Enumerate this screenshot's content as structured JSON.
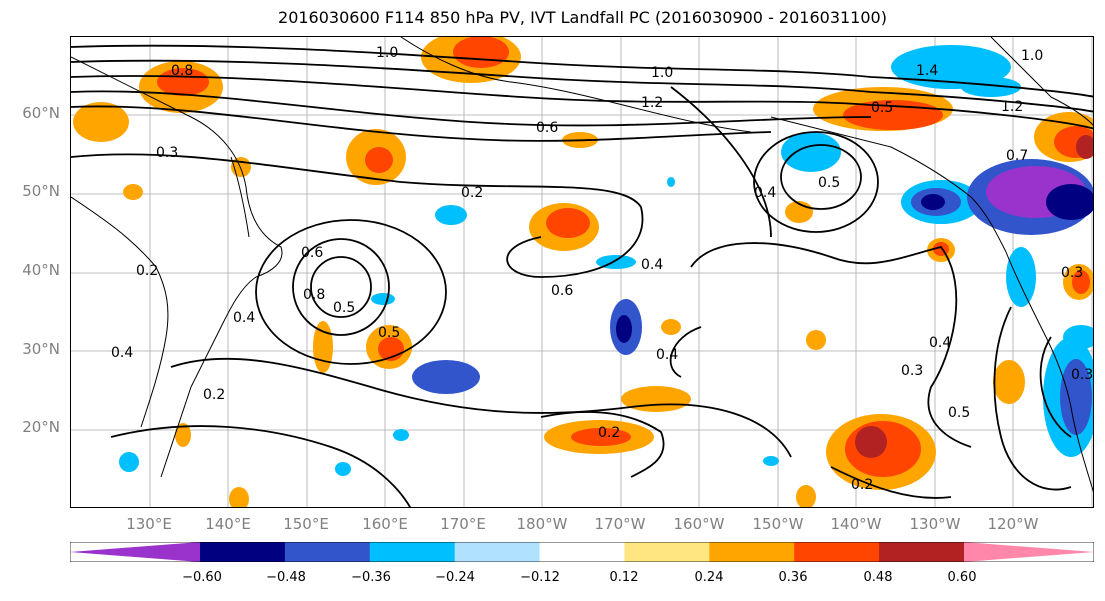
{
  "title": "2016030600 F114 850 hPa PV, IVT Landfall PC (2016030900 - 2016031100)",
  "lat_labels": [
    "60°N",
    "50°N",
    "40°N",
    "30°N",
    "20°N"
  ],
  "lon_labels": [
    "130°E",
    "140°E",
    "150°E",
    "160°E",
    "170°E",
    "180°W",
    "170°W",
    "160°W",
    "150°W",
    "140°W",
    "130°W",
    "120°W"
  ],
  "contour_labels": [
    "1.0",
    "0.8",
    "0.3",
    "0.6",
    "1.2",
    "1.0",
    "0.5",
    "1.4",
    "1.2",
    "1.0",
    "0.7",
    "0.3",
    "0.4",
    "0.5",
    "0.2",
    "0.6",
    "0.4",
    "0.8",
    "0.5",
    "0.5",
    "0.6",
    "0.4",
    "0.4",
    "0.2",
    "0.2",
    "0.3",
    "0.4",
    "0.5",
    "0.2",
    "0.3",
    "0.4",
    "0.2"
  ],
  "colorbar": {
    "colors": [
      "#9933cc",
      "#000080",
      "#3355cc",
      "#00bfff",
      "#b0e2ff",
      "#ffffff",
      "#ffe680",
      "#ffa500",
      "#ff4500",
      "#b22222",
      "#ff88aa"
    ],
    "tick_labels": [
      "−0.60",
      "−0.48",
      "−0.36",
      "−0.24",
      "−0.12",
      "0.12",
      "0.24",
      "0.36",
      "0.48",
      "0.60"
    ]
  }
}
